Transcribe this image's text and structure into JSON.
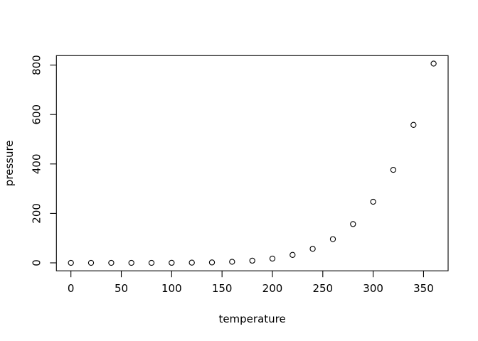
{
  "chart_data": {
    "type": "scatter",
    "title": "",
    "xlabel": "temperature",
    "ylabel": "pressure",
    "x": [
      0,
      20,
      40,
      60,
      80,
      100,
      120,
      140,
      160,
      180,
      200,
      220,
      240,
      260,
      280,
      300,
      320,
      340,
      360
    ],
    "y": [
      0.0002,
      0.0012,
      0.006,
      0.03,
      0.09,
      0.27,
      0.75,
      1.85,
      4.2,
      8.8,
      17.3,
      32.1,
      57.0,
      96.0,
      157.0,
      247.0,
      376.0,
      558.0,
      806.0
    ],
    "x_ticks": [
      0,
      50,
      100,
      150,
      200,
      250,
      300,
      350
    ],
    "y_ticks": [
      0,
      200,
      400,
      600,
      800
    ],
    "xlim": [
      -14.4,
      374.4
    ],
    "ylim": [
      -32.2,
      838.2
    ],
    "grid": false,
    "legend": "none",
    "marker": "open-circle",
    "colors": {
      "marker_stroke": "#000000",
      "axis": "#000000",
      "text": "#000000",
      "background": "#ffffff"
    }
  }
}
